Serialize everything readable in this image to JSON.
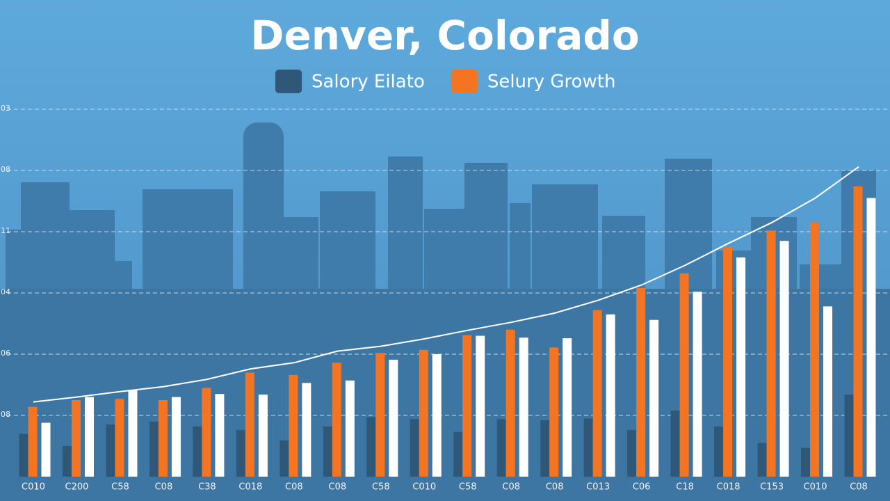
{
  "chart_data": {
    "type": "bar",
    "title": "Denver, Colorado",
    "categories": [
      "C010",
      "C200",
      "C58",
      "C08",
      "C38",
      "C018",
      "C08",
      "C08",
      "C58",
      "C010",
      "C58",
      "C08",
      "C08",
      "C013",
      "C06",
      "C18",
      "C018",
      "C153",
      "C010",
      "C08"
    ],
    "series": [
      {
        "name": "Salory Eilato",
        "color": "#2f5878",
        "values": [
          0.7,
          0.5,
          0.85,
          0.9,
          0.82,
          0.76,
          0.59,
          0.82,
          0.97,
          0.94,
          0.73,
          0.94,
          0.92,
          0.95,
          0.76,
          1.08,
          0.82,
          0.55,
          0.47,
          1.34
        ]
      },
      {
        "name": "Selury Growth",
        "color": "#f47421",
        "values": [
          1.14,
          1.25,
          1.27,
          1.25,
          1.45,
          1.7,
          1.66,
          1.86,
          2.02,
          2.07,
          2.31,
          2.4,
          2.11,
          2.72,
          3.08,
          3.32,
          3.75,
          4.02,
          4.15,
          4.74
        ]
      },
      {
        "color": "#ffffff",
        "values": [
          0.88,
          1.3,
          1.42,
          1.3,
          1.35,
          1.34,
          1.53,
          1.57,
          1.91,
          2.0,
          2.3,
          2.27,
          2.26,
          2.65,
          2.56,
          3.02,
          3.58,
          3.85,
          2.78,
          4.55
        ]
      },
      {
        "type": "line",
        "color": "#ffffff",
        "values": [
          1.22,
          1.3,
          1.39,
          1.47,
          1.59,
          1.76,
          1.86,
          2.05,
          2.13,
          2.25,
          2.39,
          2.52,
          2.67,
          2.88,
          3.13,
          3.45,
          3.81,
          4.15,
          4.55,
          5.06
        ]
      }
    ],
    "ylim": [
      0,
      6
    ],
    "yticks": [
      {
        "value": 1,
        "label": "08"
      },
      {
        "value": 2,
        "label": "06"
      },
      {
        "value": 3,
        "label": "04"
      },
      {
        "value": 4,
        "label": "11"
      },
      {
        "value": 5,
        "label": "08"
      },
      {
        "value": 6,
        "label": "03"
      }
    ],
    "grid": true
  }
}
